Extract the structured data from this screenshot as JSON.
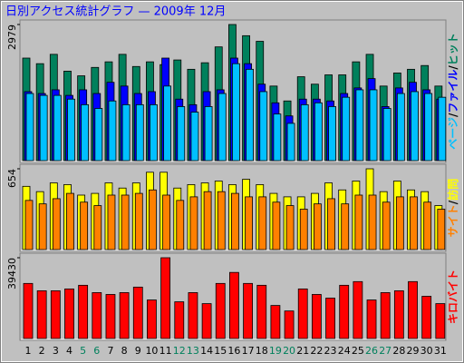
{
  "chart_data": {
    "type": "bar",
    "title": "日別アクセス統計グラフ — 2009年 12月",
    "categories": [
      "1",
      "2",
      "3",
      "4",
      "5",
      "6",
      "7",
      "8",
      "9",
      "10",
      "11",
      "12",
      "13",
      "14",
      "15",
      "16",
      "17",
      "18",
      "19",
      "20",
      "21",
      "22",
      "23",
      "24",
      "25",
      "26",
      "27",
      "28",
      "29",
      "30",
      "31"
    ],
    "category_colors": [
      "#000000",
      "#000000",
      "#000000",
      "#000000",
      "#00805c",
      "#00805c",
      "#000000",
      "#000000",
      "#000000",
      "#000000",
      "#000000",
      "#00805c",
      "#00805c",
      "#000000",
      "#000000",
      "#000000",
      "#000000",
      "#000000",
      "#00805c",
      "#00805c",
      "#000000",
      "#000000",
      "#000000",
      "#000000",
      "#000000",
      "#00805c",
      "#00805c",
      "#000000",
      "#000000",
      "#000000",
      "#000000"
    ],
    "legend_separator": "/",
    "panels": [
      {
        "ylim": [
          0,
          2979
        ],
        "yticks": [
          2979
        ],
        "series": [
          {
            "name": "ページ",
            "color": "#00c0ff",
            "values": [
              1469,
              1428,
              1428,
              1346,
              1224,
              1142,
              1306,
              1224,
              1224,
              1224,
              1632,
              1183,
              1061,
              1183,
              1469,
              2122,
              1999,
              1510,
              1020,
              816,
              1224,
              1265,
              1183,
              1387,
              1550,
              1550,
              1142,
              1469,
              1510,
              1469,
              1387
            ]
          },
          {
            "name": "ファイル",
            "color": "#0000ff",
            "values": [
              1510,
              1469,
              1550,
              1428,
              1550,
              1469,
              1714,
              1632,
              1469,
              1510,
              2244,
              1346,
              1224,
              1510,
              1550,
              2244,
              2122,
              1673,
              1265,
              979,
              1346,
              1346,
              1306,
              1469,
              1591,
              1795,
              1183,
              1591,
              1714,
              1550,
              1346
            ]
          },
          {
            "name": "ヒット",
            "color": "#00805c",
            "values": [
              2244,
              2122,
              2326,
              1958,
              1856,
              2040,
              2162,
              2326,
              2060,
              2162,
              2101,
              2203,
              1999,
              2142,
              2489,
              2979,
              2734,
              2611,
              1632,
              1306,
              1836,
              1673,
              1877,
              1877,
              2162,
              2326,
              1632,
              1918,
              1999,
              2081,
              1632
            ]
          }
        ]
      },
      {
        "ylim": [
          0,
          654
        ],
        "yticks": [
          654
        ],
        "series": [
          {
            "name": "サイト",
            "color": "#ff8000",
            "values": [
              398,
              370,
              412,
              455,
              384,
              356,
              441,
              441,
              455,
              483,
              441,
              398,
              427,
              469,
              469,
              455,
              427,
              427,
              384,
              356,
              327,
              370,
              412,
              370,
              441,
              441,
              384,
              427,
              427,
              384,
              327
            ]
          },
          {
            "name": "訪問",
            "color": "#ffff00",
            "values": [
              512,
              469,
              540,
              526,
              441,
              455,
              540,
              498,
              540,
              626,
              626,
              498,
              526,
              540,
              555,
              526,
              569,
              526,
              455,
              427,
              427,
              455,
              540,
              483,
              555,
              654,
              469,
              555,
              483,
              469,
              356
            ]
          }
        ]
      },
      {
        "ylim": [
          0,
          39430
        ],
        "yticks": [
          39430
        ],
        "series": [
          {
            "name": "キロバイト",
            "color": "#ff0000",
            "values": [
              26880,
              23296,
              23296,
              24192,
              25984,
              22400,
              21504,
              22400,
              25088,
              18816,
              39430,
              17920,
              22400,
              17024,
              26880,
              32256,
              26880,
              25984,
              16128,
              13440,
              24192,
              21504,
              19712,
              25984,
              27776,
              18816,
              22400,
              23296,
              27776,
              20608,
              17024
            ]
          }
        ]
      }
    ]
  }
}
